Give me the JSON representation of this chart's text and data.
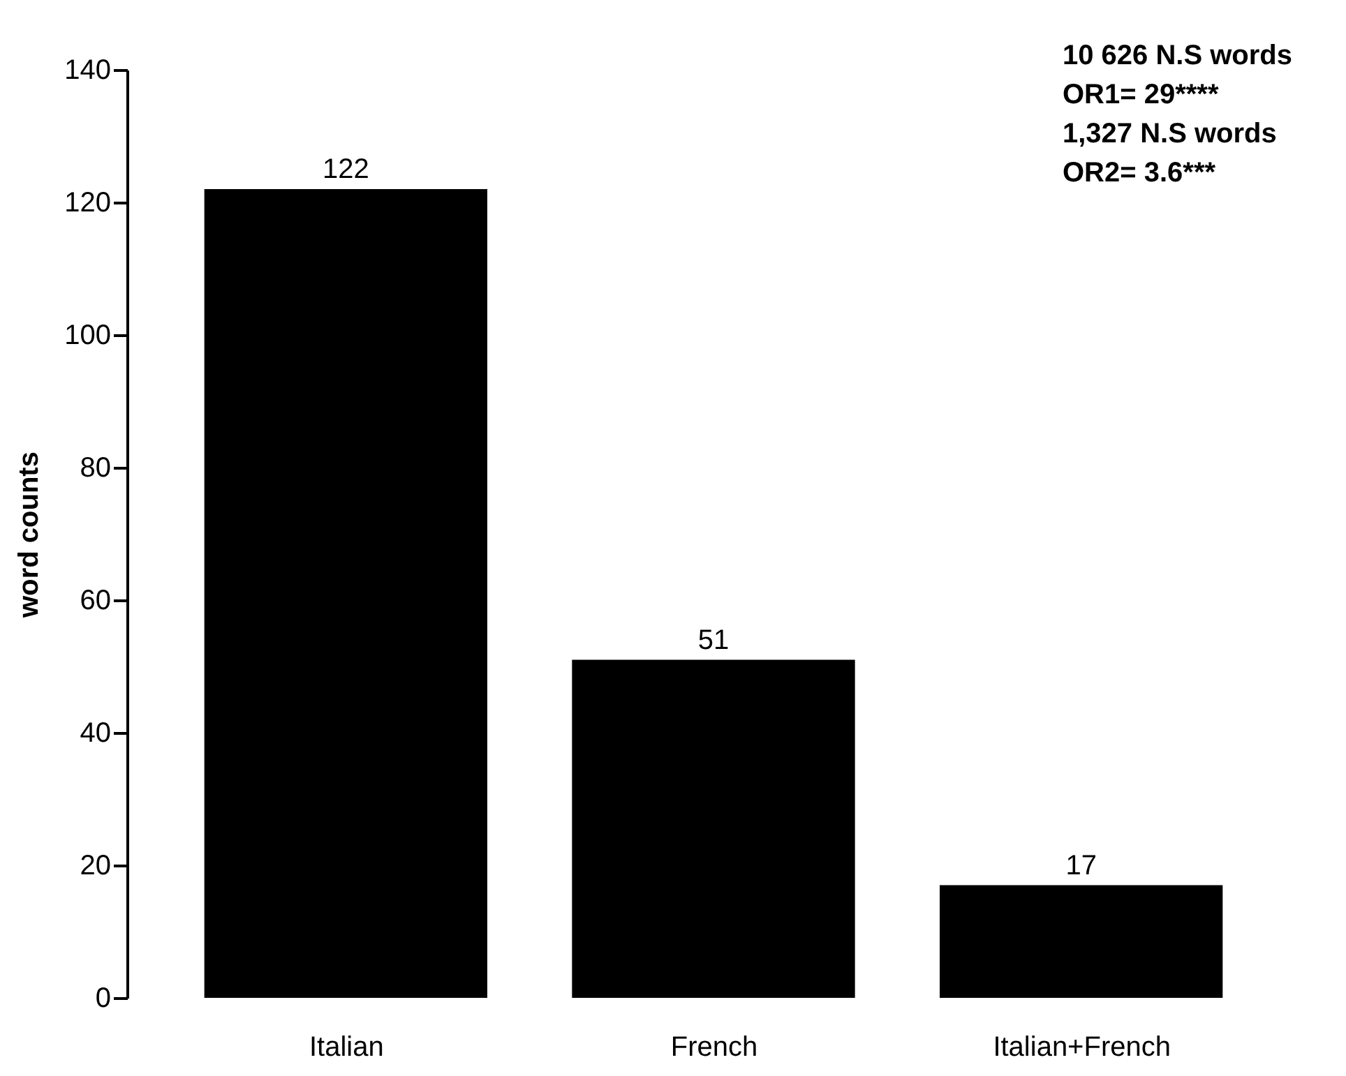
{
  "chart_data": {
    "type": "bar",
    "ylabel": "word counts",
    "categories": [
      "Italian",
      "French",
      "Italian+French"
    ],
    "values": [
      122,
      51,
      17
    ],
    "color": "#000000",
    "ylim": [
      0,
      140
    ],
    "yticks": [
      0,
      20,
      40,
      60,
      80,
      100,
      120,
      140
    ],
    "grid": false,
    "data_labels": true,
    "annotations": [
      "10 626 N.S words",
      "OR1= 29****",
      "1,327 N.S words",
      "OR2= 3.6***"
    ]
  }
}
